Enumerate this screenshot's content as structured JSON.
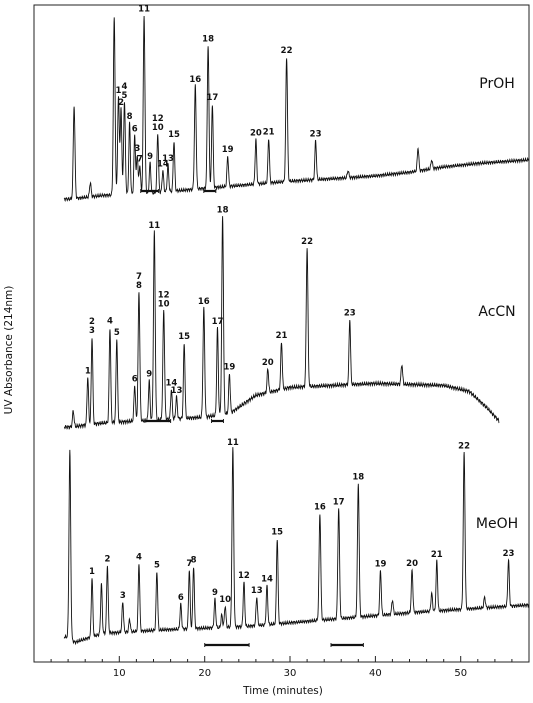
{
  "chart_data": {
    "type": "line",
    "title": "",
    "xlabel": "Time (minutes)",
    "ylabel": "UV Absorbance (214nm)",
    "xlim": [
      0,
      58
    ],
    "xticks": [
      10,
      20,
      30,
      40,
      50
    ],
    "xtick_labels": [
      "10",
      "20",
      "30",
      "40",
      "50"
    ],
    "grid": false,
    "series": [
      {
        "name": "PrOH",
        "baseline": [
          [
            3.5,
            0
          ],
          [
            4.3,
            0
          ],
          [
            8,
            0.02
          ],
          [
            13,
            0.03
          ],
          [
            20,
            0.06
          ],
          [
            30,
            0.1
          ],
          [
            37,
            0.12
          ],
          [
            40,
            0.13
          ],
          [
            44,
            0.15
          ],
          [
            48,
            0.18
          ],
          [
            52,
            0.2
          ],
          [
            58,
            0.22
          ]
        ],
        "peaks": [
          {
            "label": "",
            "t": 4.7,
            "h": 0.52
          },
          {
            "label": "",
            "t": 6.6,
            "h": 0.08
          },
          {
            "label": "",
            "t": 9.4,
            "h": 1.0
          },
          {
            "label": "1",
            "t": 9.9,
            "h": 0.55
          },
          {
            "label": "2",
            "t": 10.2,
            "h": 0.48
          },
          {
            "label": "4\n5",
            "t": 10.6,
            "h": 0.52
          },
          {
            "label": "8",
            "t": 11.2,
            "h": 0.4
          },
          {
            "label": "6",
            "t": 11.8,
            "h": 0.33
          },
          {
            "label": "3",
            "t": 12.1,
            "h": 0.22
          },
          {
            "label": "7",
            "t": 12.4,
            "h": 0.16
          },
          {
            "label": "11",
            "t": 12.9,
            "h": 1.0
          },
          {
            "label": "9",
            "t": 13.6,
            "h": 0.17
          },
          {
            "label": "12\n10",
            "t": 14.5,
            "h": 0.33
          },
          {
            "label": "14",
            "t": 15.1,
            "h": 0.12
          },
          {
            "label": "13",
            "t": 15.7,
            "h": 0.15
          },
          {
            "label": "15",
            "t": 16.4,
            "h": 0.28
          },
          {
            "label": "16",
            "t": 18.9,
            "h": 0.58
          },
          {
            "label": "18",
            "t": 20.4,
            "h": 0.8
          },
          {
            "label": "17",
            "t": 20.9,
            "h": 0.47
          },
          {
            "label": "19",
            "t": 22.7,
            "h": 0.17
          },
          {
            "label": "20",
            "t": 26.0,
            "h": 0.25
          },
          {
            "label": "21",
            "t": 27.5,
            "h": 0.25
          },
          {
            "label": "22",
            "t": 29.6,
            "h": 0.7
          },
          {
            "label": "23",
            "t": 33.0,
            "h": 0.22
          },
          {
            "label": "",
            "t": 36.8,
            "h": 0.04
          },
          {
            "label": "",
            "t": 45.0,
            "h": 0.13
          },
          {
            "label": "",
            "t": 46.6,
            "h": 0.05
          }
        ],
        "fraction_bars": [
          [
            12.5,
            14.6
          ],
          [
            19.9,
            21.3
          ]
        ]
      },
      {
        "name": "AcCN",
        "baseline": [
          [
            3.5,
            0
          ],
          [
            4.3,
            0
          ],
          [
            8,
            0.02
          ],
          [
            12,
            0.03
          ],
          [
            20,
            0.05
          ],
          [
            23,
            0.07
          ],
          [
            26,
            0.16
          ],
          [
            30,
            0.2
          ],
          [
            40,
            0.22
          ],
          [
            48,
            0.21
          ],
          [
            51,
            0.18
          ],
          [
            53,
            0.1
          ],
          [
            54.5,
            0.03
          ]
        ],
        "peaks": [
          {
            "label": "",
            "t": 4.6,
            "h": 0.08
          },
          {
            "label": "1",
            "t": 6.3,
            "h": 0.24
          },
          {
            "label": "2\n3",
            "t": 6.8,
            "h": 0.44
          },
          {
            "label": "4",
            "t": 8.9,
            "h": 0.48
          },
          {
            "label": "5",
            "t": 9.7,
            "h": 0.42
          },
          {
            "label": "6",
            "t": 11.8,
            "h": 0.18
          },
          {
            "label": "7\n8",
            "t": 12.3,
            "h": 0.65
          },
          {
            "label": "9",
            "t": 13.5,
            "h": 0.2
          },
          {
            "label": "11",
            "t": 14.1,
            "h": 0.95
          },
          {
            "label": "12\n10",
            "t": 15.2,
            "h": 0.55
          },
          {
            "label": "14",
            "t": 16.1,
            "h": 0.15
          },
          {
            "label": "13",
            "t": 16.7,
            "h": 0.11
          },
          {
            "label": "15",
            "t": 17.6,
            "h": 0.38
          },
          {
            "label": "16",
            "t": 19.9,
            "h": 0.55
          },
          {
            "label": "17",
            "t": 21.5,
            "h": 0.44
          },
          {
            "label": "18",
            "t": 22.1,
            "h": 1.0
          },
          {
            "label": "19",
            "t": 22.9,
            "h": 0.2
          },
          {
            "label": "20",
            "t": 27.4,
            "h": 0.12
          },
          {
            "label": "21",
            "t": 29.0,
            "h": 0.24
          },
          {
            "label": "22",
            "t": 32.0,
            "h": 0.7
          },
          {
            "label": "23",
            "t": 37.0,
            "h": 0.33
          },
          {
            "label": "",
            "t": 43.1,
            "h": 0.1
          }
        ],
        "fraction_bars": [
          [
            13.0,
            16.0
          ],
          [
            20.8,
            22.2
          ]
        ]
      },
      {
        "name": "MeOH",
        "baseline": [
          [
            3.5,
            0
          ],
          [
            4.0,
            0
          ],
          [
            4.8,
            -0.03
          ],
          [
            8,
            0.02
          ],
          [
            15,
            0.04
          ],
          [
            25,
            0.06
          ],
          [
            35,
            0.1
          ],
          [
            45,
            0.14
          ],
          [
            58,
            0.18
          ]
        ],
        "peaks": [
          {
            "label": "",
            "t": 4.2,
            "h": 1.05
          },
          {
            "label": "1",
            "t": 6.8,
            "h": 0.33
          },
          {
            "label": "2",
            "t": 8.6,
            "h": 0.38
          },
          {
            "label": "",
            "t": 7.9,
            "h": 0.28
          },
          {
            "label": "3",
            "t": 10.4,
            "h": 0.17
          },
          {
            "label": "",
            "t": 11.2,
            "h": 0.07
          },
          {
            "label": "4",
            "t": 12.3,
            "h": 0.38
          },
          {
            "label": "5",
            "t": 14.4,
            "h": 0.33
          },
          {
            "label": "6",
            "t": 17.2,
            "h": 0.14
          },
          {
            "label": "7",
            "t": 18.2,
            "h": 0.33
          },
          {
            "label": "8",
            "t": 18.7,
            "h": 0.35
          },
          {
            "label": "9",
            "t": 21.2,
            "h": 0.16
          },
          {
            "label": "",
            "t": 22.0,
            "h": 0.07
          },
          {
            "label": "10",
            "t": 22.4,
            "h": 0.12
          },
          {
            "label": "11",
            "t": 23.3,
            "h": 1.0
          },
          {
            "label": "12",
            "t": 24.6,
            "h": 0.25
          },
          {
            "label": "13",
            "t": 26.1,
            "h": 0.16
          },
          {
            "label": "14",
            "t": 27.3,
            "h": 0.22
          },
          {
            "label": "15",
            "t": 28.5,
            "h": 0.48
          },
          {
            "label": "16",
            "t": 33.5,
            "h": 0.6
          },
          {
            "label": "17",
            "t": 35.7,
            "h": 0.62
          },
          {
            "label": "18",
            "t": 38.0,
            "h": 0.75
          },
          {
            "label": "19",
            "t": 40.6,
            "h": 0.25
          },
          {
            "label": "",
            "t": 42.0,
            "h": 0.08
          },
          {
            "label": "20",
            "t": 44.3,
            "h": 0.24
          },
          {
            "label": "21",
            "t": 47.2,
            "h": 0.28
          },
          {
            "label": "",
            "t": 46.6,
            "h": 0.1
          },
          {
            "label": "22",
            "t": 50.4,
            "h": 0.88
          },
          {
            "label": "",
            "t": 52.8,
            "h": 0.06
          },
          {
            "label": "23",
            "t": 55.6,
            "h": 0.26
          }
        ],
        "fraction_bars": [
          [
            20.0,
            25.2
          ],
          [
            34.8,
            38.6
          ]
        ]
      }
    ]
  }
}
